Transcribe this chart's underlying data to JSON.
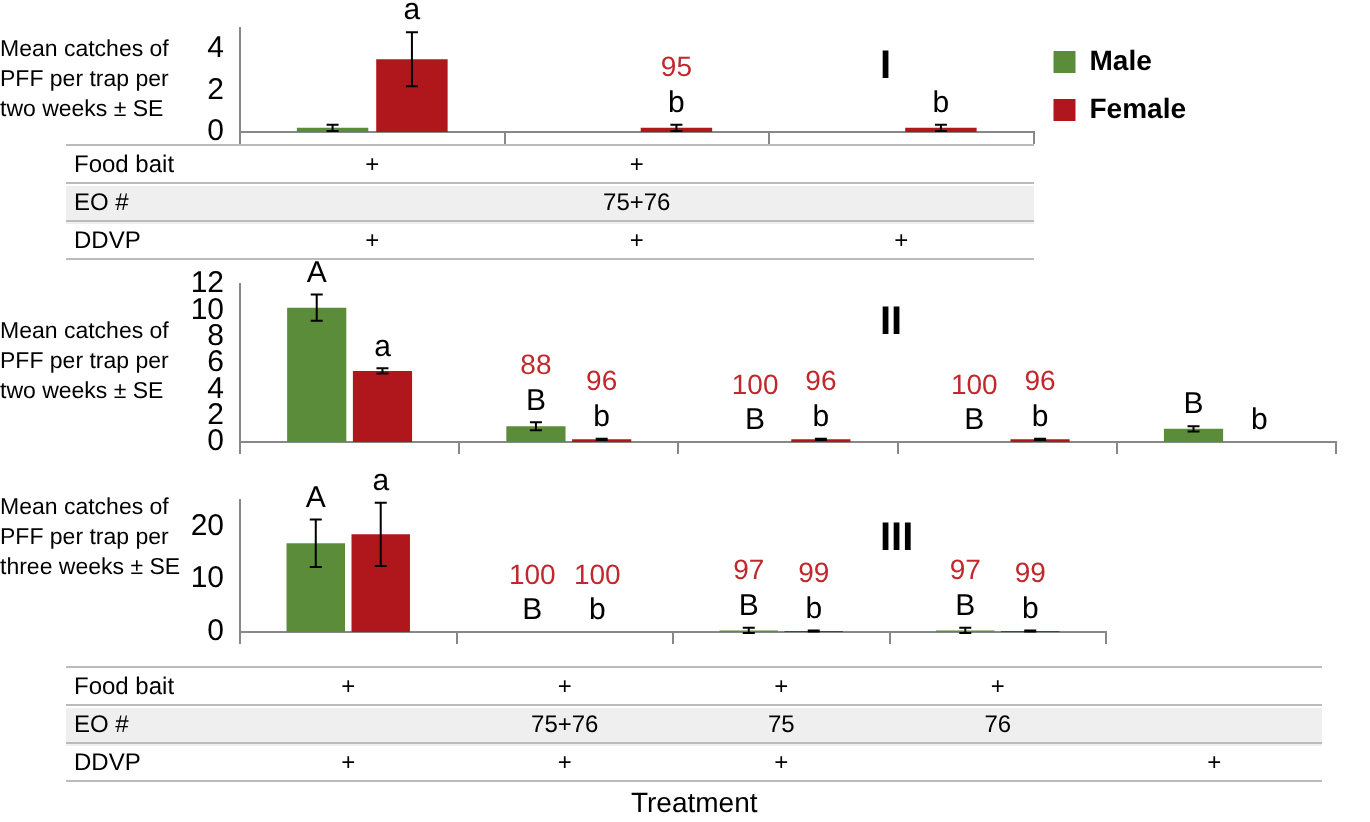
{
  "chart_data": [
    {
      "type": "bar",
      "title": "I",
      "ylabel": "Mean catches of PFF per trap per two weeks ± SE",
      "categories": [
        null,
        null,
        null
      ],
      "tick_labels": "y",
      "ylim": [
        0,
        5
      ],
      "yticks": [
        0,
        2,
        4
      ],
      "legend": "right",
      "series": [
        {
          "name": "Male",
          "color": "#5b8c3a",
          "values": [
            0.2,
            0,
            0
          ],
          "errors": [
            0.15,
            null,
            null
          ]
        },
        {
          "name": "Female",
          "color": "#b0171c",
          "values": [
            3.5,
            0.2,
            0.2
          ],
          "errors": [
            1.3,
            0.15,
            0.15
          ]
        }
      ],
      "annotations": [
        null,
        null,
        null,
        "a",
        "95\nb",
        "b"
      ]
    },
    {
      "type": "other",
      "y_categories": [
        "Food bait",
        "EO #",
        "DDVP"
      ],
      "cell_labels": [
        [
          "+",
          "+",
          null
        ],
        [
          null,
          "75+76",
          null
        ],
        [
          "+",
          "+",
          "+"
        ]
      ]
    },
    {
      "type": "bar",
      "title": "II",
      "ylabel": "Mean catches of PFF per trap per two weeks ± SE",
      "categories": [
        null,
        null,
        null,
        null,
        null
      ],
      "tick_labels": "y",
      "ylim": [
        0,
        12
      ],
      "yticks": [
        0,
        2,
        4,
        6,
        8,
        10,
        12
      ],
      "series": [
        {
          "color": "#5b8c3a",
          "values": [
            10.2,
            1.2,
            0,
            0,
            1.0
          ],
          "errors": [
            1.0,
            0.3,
            null,
            null,
            0.2
          ]
        },
        {
          "color": "#b0171c",
          "values": [
            5.4,
            0.2,
            0.2,
            0.2,
            0
          ],
          "errors": [
            0.2,
            0.05,
            0.05,
            0.05,
            null
          ]
        }
      ],
      "annotations": [
        "A",
        "88\nB",
        "100\nB",
        "100\nB",
        "B",
        "a",
        "96\nb",
        "96\nb",
        "96\nb",
        "b"
      ]
    },
    {
      "type": "bar",
      "title": "III",
      "ylabel": "Mean catches of PFF per trap per three weeks ± SE",
      "categories": [
        null,
        null,
        null,
        null
      ],
      "tick_labels": "y",
      "ylim": [
        0,
        25
      ],
      "yticks": [
        0,
        10,
        20
      ],
      "series": [
        {
          "color": "#5b8c3a",
          "values": [
            16.8,
            0,
            0.3,
            0.3
          ],
          "errors": [
            4.5,
            null,
            0.5,
            0.5
          ]
        },
        {
          "color": "#b0171c",
          "values": [
            18.5,
            0,
            0.2,
            0.2
          ],
          "errors": [
            6,
            null,
            0.1,
            0.1
          ]
        }
      ],
      "annotations": [
        "A",
        "100\nB",
        "97\nB",
        "97\nB",
        "a",
        "100\nb",
        "99\nb",
        "99\nb"
      ]
    },
    {
      "type": "other",
      "xlabel": "Treatment",
      "y_categories": [
        "Food bait",
        "EO #",
        "DDVP"
      ],
      "cell_labels": [
        [
          "+",
          "+",
          "+",
          "+",
          null
        ],
        [
          null,
          "75+76",
          "75",
          "76",
          null
        ],
        [
          "+",
          "+",
          "+",
          null,
          "+"
        ]
      ]
    }
  ]
}
